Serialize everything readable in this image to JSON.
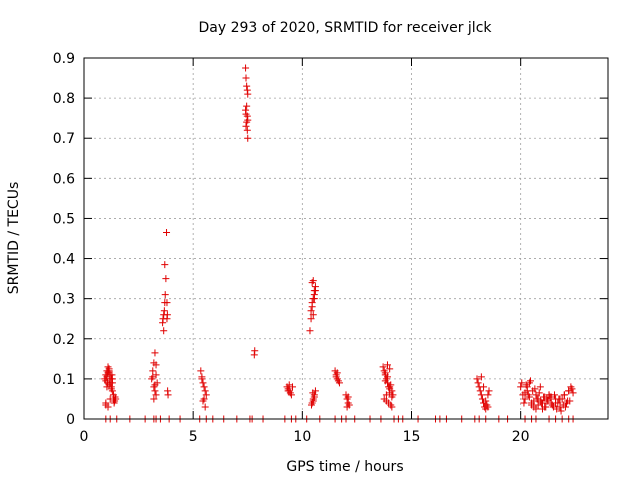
{
  "chart_data": {
    "type": "scatter",
    "title": "Day 293 of 2020, SRMTID for receiver jlck",
    "xlabel": "GPS time / hours",
    "ylabel": "SRMTID / TECUs",
    "xlim": [
      0,
      24
    ],
    "ylim": [
      0,
      0.9
    ],
    "x_ticks": [
      0,
      5,
      10,
      15,
      20
    ],
    "x_tick_labels": [
      "0",
      "5",
      "10",
      "15",
      "20"
    ],
    "y_ticks": [
      0,
      0.1,
      0.2,
      0.3,
      0.4,
      0.5,
      0.6,
      0.7,
      0.8,
      0.9
    ],
    "y_tick_labels": [
      "0",
      "0.1",
      "0.2",
      "0.3",
      "0.4",
      "0.5",
      "0.6",
      "0.7",
      "0.8",
      "0.9"
    ],
    "grid": true,
    "marker": "+",
    "marker_color": "#e00000",
    "series": [
      {
        "name": "SRMTID",
        "x": [
          0.95,
          1.0,
          1.05,
          1.1,
          1.15,
          1.2,
          1.25,
          1.3,
          1.0,
          1.05,
          1.1,
          1.15,
          1.2,
          1.25,
          1.3,
          1.35,
          1.0,
          1.1,
          1.2,
          1.3,
          1.05,
          1.15,
          1.25,
          1.0,
          1.08,
          1.18,
          1.28,
          1.35,
          1.4,
          1.45,
          1.38,
          1.42,
          3.1,
          3.15,
          3.2,
          3.25,
          3.3,
          3.35,
          3.2,
          3.25,
          3.3,
          3.2,
          3.25,
          3.15,
          3.3,
          3.6,
          3.62,
          3.65,
          3.68,
          3.7,
          3.72,
          3.75,
          3.7,
          3.65,
          3.78,
          3.8,
          3.82,
          3.8,
          3.83,
          3.85,
          5.35,
          5.4,
          5.45,
          5.5,
          5.55,
          5.6,
          5.5,
          5.45,
          5.4,
          5.55,
          7.4,
          7.42,
          7.45,
          7.48,
          7.5,
          7.45,
          7.4,
          7.42,
          7.48,
          7.5,
          7.45,
          7.42,
          7.5,
          7.48,
          7.8,
          7.82,
          9.3,
          9.35,
          9.4,
          9.45,
          9.5,
          9.55,
          9.4,
          9.35,
          10.35,
          10.4,
          10.45,
          10.5,
          10.55,
          10.6,
          10.45,
          10.5,
          10.55,
          10.45,
          10.4,
          10.5,
          10.55,
          10.6,
          10.55,
          10.5,
          10.45,
          10.6,
          10.5,
          10.55,
          10.42,
          10.48,
          11.5,
          11.55,
          11.6,
          11.65,
          11.7,
          11.55,
          11.6,
          12.0,
          12.05,
          12.1,
          12.15,
          12.05,
          12.1,
          13.7,
          13.75,
          13.8,
          13.85,
          13.9,
          13.95,
          14.0,
          14.05,
          14.1,
          14.15,
          13.8,
          13.9,
          14.0,
          14.1,
          13.75,
          13.85,
          13.95,
          14.05,
          13.8,
          14.0,
          13.9,
          14.1,
          13.85,
          14.0,
          18.0,
          18.05,
          18.1,
          18.15,
          18.2,
          18.25,
          18.3,
          18.35,
          18.4,
          18.45,
          18.5,
          18.55,
          18.3,
          18.4,
          18.2,
          18.5,
          20.0,
          20.1,
          20.2,
          20.3,
          20.4,
          20.5,
          20.6,
          20.7,
          20.8,
          20.9,
          21.0,
          21.1,
          21.2,
          21.3,
          21.4,
          21.5,
          21.6,
          21.7,
          21.8,
          21.9,
          22.0,
          22.1,
          22.2,
          22.3,
          22.4,
          20.05,
          20.25,
          20.45,
          20.65,
          20.85,
          21.05,
          21.25,
          21.45,
          21.65,
          21.85,
          22.05,
          22.25,
          20.15,
          20.35,
          20.55,
          20.75,
          20.95,
          21.15,
          21.35,
          21.55,
          21.75,
          21.95,
          22.15,
          22.35,
          20.2,
          20.4,
          20.6,
          20.8,
          21.0,
          21.2,
          21.4,
          21.6,
          21.8,
          22.0,
          22.2,
          20.3,
          20.5,
          20.7,
          20.9,
          21.1,
          21.3,
          1.0,
          1.5,
          2.1,
          2.8,
          3.2,
          3.5,
          3.9,
          4.4,
          5.3,
          5.9,
          6.4,
          7.0,
          7.6,
          8.2,
          9.2,
          9.7,
          10.2,
          10.8,
          11.5,
          12.0,
          12.4,
          13.1,
          13.6,
          14.2,
          14.6,
          15.3,
          16.1,
          16.6,
          17.3,
          17.9,
          18.4,
          19.0,
          19.4,
          20.2,
          20.7,
          21.3,
          21.9,
          22.4,
          1.2,
          3.3,
          5.6,
          7.7,
          9.5,
          11.8,
          14.4,
          16.3,
          18.1,
          20.5,
          21.6,
          22.2
        ],
        "y": [
          0.1,
          0.11,
          0.12,
          0.13,
          0.12,
          0.11,
          0.1,
          0.09,
          0.095,
          0.105,
          0.115,
          0.125,
          0.09,
          0.08,
          0.07,
          0.06,
          0.04,
          0.03,
          0.05,
          0.1,
          0.08,
          0.085,
          0.075,
          0.035,
          0.09,
          0.1,
          0.11,
          0.05,
          0.045,
          0.05,
          0.04,
          0.055,
          0.1,
          0.12,
          0.14,
          0.165,
          0.11,
          0.09,
          0.08,
          0.07,
          0.06,
          0.05,
          0.085,
          0.105,
          0.135,
          0.24,
          0.25,
          0.26,
          0.27,
          0.29,
          0.31,
          0.35,
          0.385,
          0.22,
          0.465,
          0.29,
          0.26,
          0.25,
          0.07,
          0.06,
          0.12,
          0.1,
          0.09,
          0.08,
          0.07,
          0.06,
          0.05,
          0.045,
          0.105,
          0.03,
          0.875,
          0.85,
          0.83,
          0.82,
          0.81,
          0.78,
          0.77,
          0.76,
          0.755,
          0.745,
          0.74,
          0.73,
          0.7,
          0.72,
          0.16,
          0.17,
          0.08,
          0.075,
          0.07,
          0.065,
          0.06,
          0.08,
          0.085,
          0.07,
          0.22,
          0.25,
          0.28,
          0.3,
          0.32,
          0.33,
          0.34,
          0.345,
          0.31,
          0.29,
          0.27,
          0.26,
          0.3,
          0.32,
          0.06,
          0.05,
          0.04,
          0.07,
          0.045,
          0.055,
          0.035,
          0.065,
          0.12,
          0.11,
          0.1,
          0.095,
          0.09,
          0.105,
          0.115,
          0.06,
          0.05,
          0.04,
          0.035,
          0.03,
          0.055,
          0.13,
          0.12,
          0.11,
          0.1,
          0.09,
          0.08,
          0.075,
          0.085,
          0.07,
          0.06,
          0.095,
          0.105,
          0.065,
          0.055,
          0.05,
          0.045,
          0.04,
          0.035,
          0.115,
          0.125,
          0.135,
          0.03,
          0.06,
          0.08,
          0.1,
          0.09,
          0.08,
          0.07,
          0.06,
          0.05,
          0.04,
          0.03,
          0.025,
          0.035,
          0.06,
          0.07,
          0.08,
          0.045,
          0.105,
          0.03,
          0.08,
          0.06,
          0.05,
          0.07,
          0.09,
          0.04,
          0.03,
          0.06,
          0.05,
          0.08,
          0.04,
          0.03,
          0.05,
          0.06,
          0.04,
          0.03,
          0.05,
          0.04,
          0.03,
          0.05,
          0.06,
          0.04,
          0.07,
          0.08,
          0.065,
          0.09,
          0.085,
          0.095,
          0.075,
          0.065,
          0.055,
          0.045,
          0.035,
          0.025,
          0.02,
          0.03,
          0.045,
          0.04,
          0.06,
          0.07,
          0.05,
          0.04,
          0.03,
          0.055,
          0.06,
          0.05,
          0.035,
          0.045,
          0.075,
          0.065,
          0.055,
          0.045,
          0.035,
          0.025,
          0.045,
          0.055,
          0.04,
          0.05,
          0.06,
          0.07,
          0.08,
          0.035,
          0.025,
          0.045,
          0.055,
          0.06,
          0,
          0,
          0,
          0,
          0,
          0,
          0,
          0,
          0,
          0,
          0,
          0,
          0,
          0,
          0,
          0,
          0,
          0,
          0,
          0,
          0,
          0,
          0,
          0,
          0,
          0,
          0,
          0,
          0,
          0,
          0,
          0,
          0,
          0,
          0,
          0,
          0,
          0,
          0,
          0,
          0,
          0,
          0,
          0,
          0,
          0,
          0,
          0,
          0,
          0
        ]
      }
    ]
  }
}
